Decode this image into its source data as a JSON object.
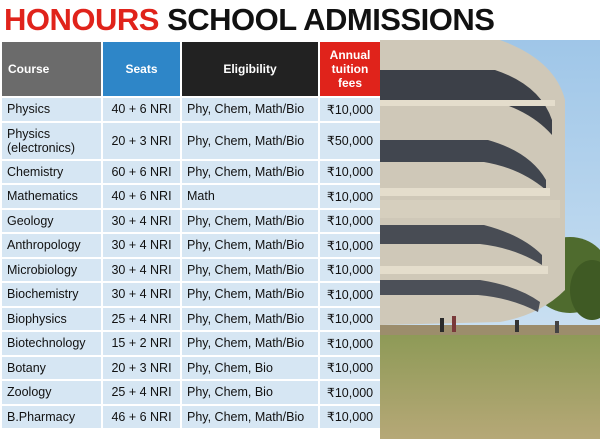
{
  "title": {
    "part1": "HONOURS",
    "part2": "SCHOOL ADMISSIONS"
  },
  "columns": [
    "Course",
    "Seats",
    "Eligibility",
    "Annual tuition fees"
  ],
  "rows": [
    {
      "course": "Physics",
      "seats": "40 + 6 NRI",
      "eligibility": "Phy, Chem, Math/Bio",
      "fees": "₹10,000"
    },
    {
      "course": "Physics (electronics)",
      "seats": "20 + 3 NRI",
      "eligibility": "Phy, Chem, Math/Bio",
      "fees": "₹50,000"
    },
    {
      "course": "Chemistry",
      "seats": "60 + 6 NRI",
      "eligibility": "Phy, Chem, Math/Bio",
      "fees": "₹10,000"
    },
    {
      "course": "Mathematics",
      "seats": "40 + 6 NRI",
      "eligibility": "Math",
      "fees": "₹10,000"
    },
    {
      "course": "Geology",
      "seats": "30 + 4 NRI",
      "eligibility": "Phy, Chem, Math/Bio",
      "fees": "₹10,000"
    },
    {
      "course": "Anthropology",
      "seats": "30 + 4 NRI",
      "eligibility": "Phy, Chem, Math/Bio",
      "fees": "₹10,000"
    },
    {
      "course": "Microbiology",
      "seats": "30 + 4 NRI",
      "eligibility": "Phy, Chem, Math/Bio",
      "fees": "₹10,000"
    },
    {
      "course": "Biochemistry",
      "seats": "30 + 4 NRI",
      "eligibility": "Phy, Chem, Math/Bio",
      "fees": "₹10,000"
    },
    {
      "course": "Biophysics",
      "seats": "25 + 4 NRI",
      "eligibility": "Phy, Chem, Math/Bio",
      "fees": "₹10,000"
    },
    {
      "course": "Biotechnology",
      "seats": "15 + 2 NRI",
      "eligibility": "Phy, Chem, Math/Bio",
      "fees": "₹10,000"
    },
    {
      "course": "Botany",
      "seats": "20 + 3 NRI",
      "eligibility": "Phy, Chem, Bio",
      "fees": "₹10,000"
    },
    {
      "course": "Zoology",
      "seats": "25 + 4 NRI",
      "eligibility": "Phy, Chem, Bio",
      "fees": "₹10,000"
    },
    {
      "course": "B.Pharmacy",
      "seats": "46 + 6 NRI",
      "eligibility": "Phy, Chem, Math/Bio",
      "fees": "₹10,000"
    }
  ],
  "colors": {
    "title_red": "#e0231b",
    "header_course": "#6b6b6b",
    "header_seats": "#2e86c8",
    "header_eligibility": "#222222",
    "header_fees": "#e0231b",
    "row_bg": "#d6e6f3"
  },
  "photo": {
    "subject": "curved-modernist-building-photo"
  }
}
